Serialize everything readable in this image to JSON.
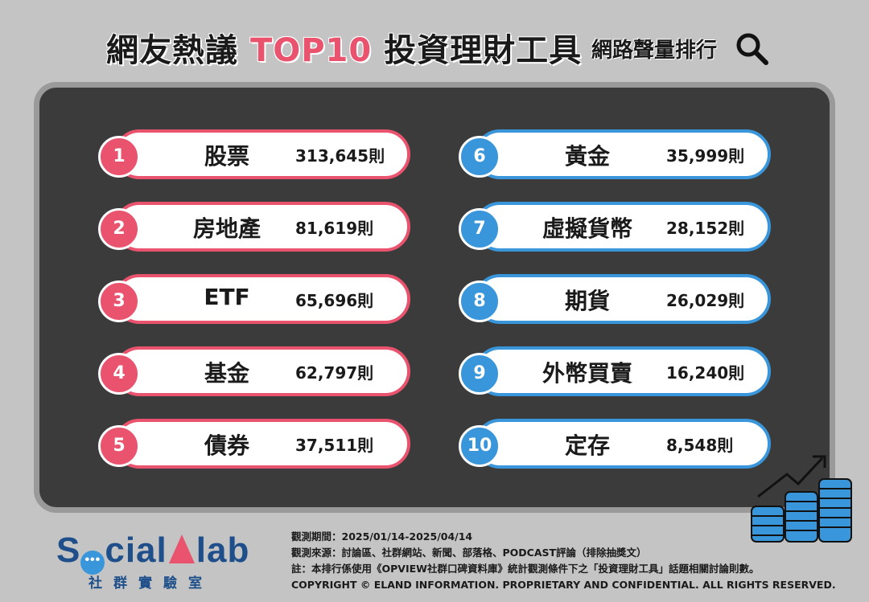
{
  "header": {
    "title_pre": "網友熱議",
    "title_highlight": "TOP10",
    "title_post": "投資理財工具",
    "subtitle": "網路聲量排行"
  },
  "ranking": [
    {
      "rank": "1",
      "name": "股票",
      "count": "313,645則",
      "color": "#e9536e"
    },
    {
      "rank": "2",
      "name": "房地產",
      "count": "81,619則",
      "color": "#e9536e"
    },
    {
      "rank": "3",
      "name": "ETF",
      "count": "65,696則",
      "color": "#e9536e"
    },
    {
      "rank": "4",
      "name": "基金",
      "count": "62,797則",
      "color": "#e9536e"
    },
    {
      "rank": "5",
      "name": "債券",
      "count": "37,511則",
      "color": "#e9536e"
    },
    {
      "rank": "6",
      "name": "黃金",
      "count": "35,999則",
      "color": "#3a96da"
    },
    {
      "rank": "7",
      "name": "虛擬貨幣",
      "count": "28,152則",
      "color": "#3a96da"
    },
    {
      "rank": "8",
      "name": "期貨",
      "count": "26,029則",
      "color": "#3a96da"
    },
    {
      "rank": "9",
      "name": "外幣買賣",
      "count": "16,240則",
      "color": "#3a96da"
    },
    {
      "rank": "10",
      "name": "定存",
      "count": "8,548則",
      "color": "#3a96da"
    }
  ],
  "logo": {
    "text_a": "S",
    "text_b": "cial",
    "text_c": "lab",
    "sub": "社群實驗室"
  },
  "notes": {
    "period": "觀測期間：2025/01/14-2025/04/14",
    "source": "觀測來源：討論區、社群網站、新聞、部落格、PODCAST評論（排除抽獎文）",
    "note": "註：本排行係使用《OPVIEW社群口碑資料庫》統計觀測條件下之「投資理財工具」話題相關討論則數。",
    "copyright": "COPYRIGHT © ELAND INFORMATION. PROPRIETARY AND CONFIDENTIAL. ALL RIGHTS RESERVED."
  },
  "icons": {
    "search": "search-icon",
    "coins": "coin-stacks-growth-icon"
  }
}
